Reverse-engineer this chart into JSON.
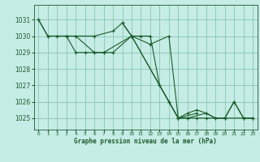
{
  "title": "Graphe pression niveau de la mer (hPa)",
  "background_color": "#c6ece6",
  "grid_color": "#7abda8",
  "line_color": "#1a5c2a",
  "xlim": [
    -0.5,
    23.5
  ],
  "ylim": [
    1024.3,
    1031.9
  ],
  "yticks": [
    1025,
    1026,
    1027,
    1028,
    1029,
    1030,
    1031
  ],
  "xticks": [
    0,
    1,
    2,
    3,
    4,
    5,
    6,
    7,
    8,
    9,
    10,
    11,
    12,
    13,
    14,
    15,
    16,
    17,
    18,
    19,
    20,
    21,
    22,
    23
  ],
  "series": [
    {
      "x": [
        0,
        1,
        3,
        4,
        6,
        7,
        10,
        12,
        14,
        15,
        16,
        17,
        18,
        20,
        22,
        23
      ],
      "y": [
        1031,
        1030,
        1030,
        1030,
        1029,
        1029,
        1030,
        1029.5,
        1030,
        1025,
        1025,
        1025,
        1025,
        1025,
        1025,
        1025
      ]
    },
    {
      "x": [
        0,
        1,
        3,
        4,
        5,
        6,
        7,
        8,
        10,
        13,
        14,
        15,
        16,
        18,
        19,
        20,
        21,
        22,
        23
      ],
      "y": [
        1031,
        1030,
        1030,
        1029,
        1029,
        1029,
        1029,
        1029,
        1030,
        1027,
        1026,
        1025,
        1025,
        1025.3,
        1025,
        1025,
        1026,
        1025,
        1025
      ]
    },
    {
      "x": [
        2,
        6,
        8,
        9,
        10,
        15,
        17
      ],
      "y": [
        1030,
        1030,
        1030.3,
        1030.8,
        1030,
        1025,
        1025.3
      ]
    },
    {
      "x": [
        9,
        10,
        11,
        12,
        13,
        14,
        15,
        16,
        17,
        18,
        19,
        20,
        21,
        22,
        23
      ],
      "y": [
        1030.8,
        1030,
        1030,
        1030,
        1027,
        1026,
        1025,
        1025.3,
        1025.5,
        1025.3,
        1025,
        1025,
        1026,
        1025,
        1025
      ]
    }
  ]
}
